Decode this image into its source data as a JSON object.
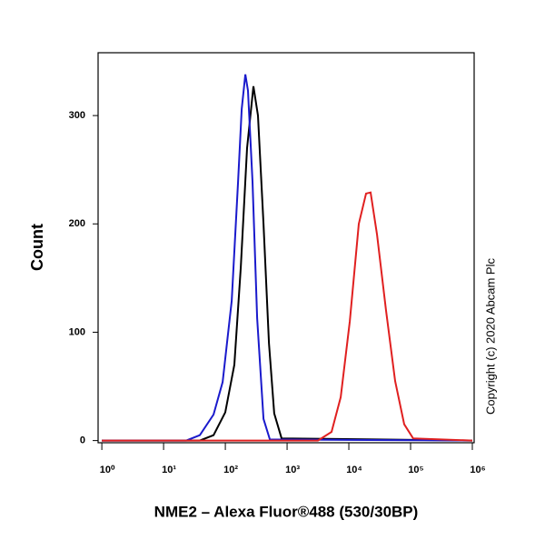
{
  "chart_data": {
    "type": "line",
    "x_label": "NME2 – Alexa Fluor®488 (530/30BP)",
    "y_label": "Count",
    "annotation": "Copyright (c) 2020 Abcam Plc",
    "log_x": true,
    "xlim": [
      0.87,
      1070000
    ],
    "ylim": [
      -2,
      358
    ],
    "xticks": [
      {
        "value": 1,
        "label": "10⁰"
      },
      {
        "value": 10,
        "label": "10¹"
      },
      {
        "value": 100,
        "label": "10²"
      },
      {
        "value": 1000,
        "label": "10³"
      },
      {
        "value": 10000,
        "label": "10⁴"
      },
      {
        "value": 100000,
        "label": "10⁵"
      },
      {
        "value": 1000000,
        "label": "10⁶"
      }
    ],
    "yticks": [
      0,
      100,
      200,
      300
    ],
    "series": [
      {
        "color": "#000000",
        "x": [
          1,
          38.7,
          64.4,
          99.6,
          140,
          178,
          225,
          285,
          338,
          415,
          509,
          620,
          814,
          1000000
        ],
        "values": [
          0,
          0,
          5,
          26,
          70,
          160,
          270,
          327,
          300,
          200,
          90,
          25,
          2,
          0
        ]
      },
      {
        "color": "#1a1acc",
        "x": [
          1,
          23.3,
          38.7,
          64.4,
          90.3,
          127,
          161,
          184,
          211,
          233,
          276,
          327,
          415,
          526,
          1000000
        ],
        "values": [
          0,
          0,
          5,
          24,
          54,
          129,
          239,
          306,
          338,
          323,
          239,
          113,
          20,
          1,
          0
        ]
      },
      {
        "color": "#e02020",
        "x": [
          1,
          3162,
          5250,
          7380,
          10350,
          14500,
          19000,
          22500,
          28600,
          40100,
          56200,
          78800,
          110000,
          1000000
        ],
        "values": [
          0,
          0,
          8,
          40,
          110,
          200,
          228,
          229,
          190,
          120,
          55,
          15,
          2,
          0
        ]
      }
    ]
  }
}
